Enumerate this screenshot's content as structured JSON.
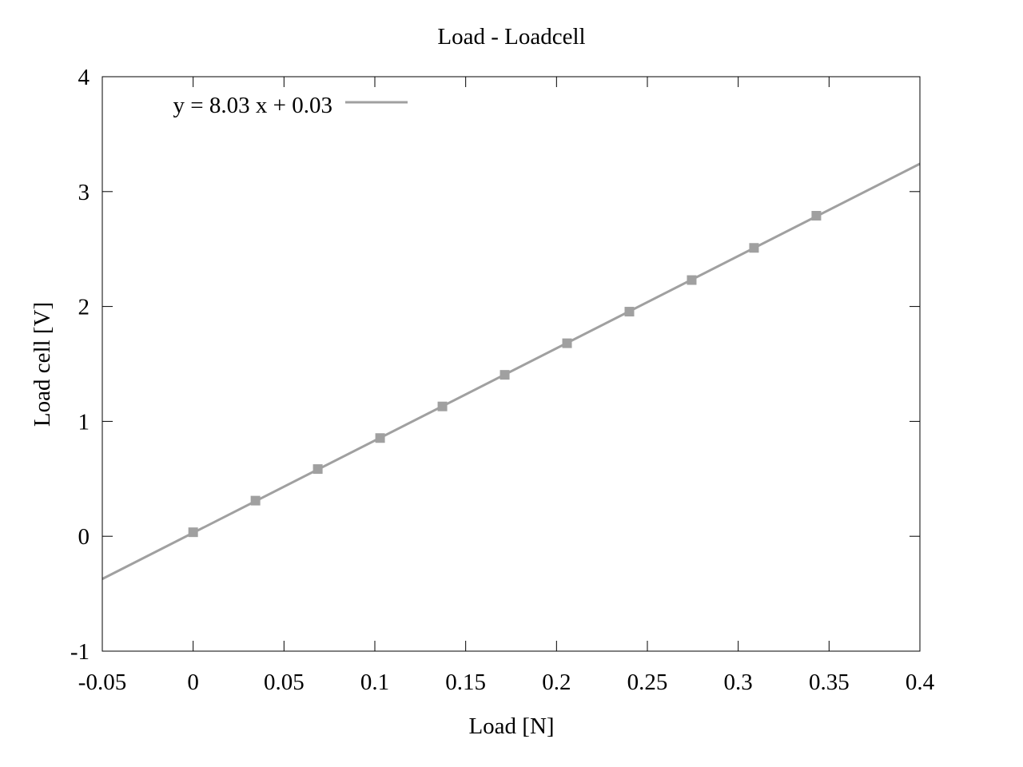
{
  "chart_data": {
    "type": "scatter",
    "title": "Load - Loadcell",
    "xlabel": "Load [N]",
    "ylabel": "Load cell [V]",
    "xlim": [
      -0.05,
      0.4
    ],
    "ylim": [
      -1,
      4
    ],
    "xticks": [
      -0.05,
      0,
      0.05,
      0.1,
      0.15,
      0.2,
      0.25,
      0.3,
      0.35,
      0.4
    ],
    "xtick_labels": [
      "-0.05",
      "0",
      "0.05",
      "0.1",
      "0.15",
      "0.2",
      "0.25",
      "0.3",
      "0.35",
      "0.4"
    ],
    "yticks": [
      -1,
      0,
      1,
      2,
      3,
      4
    ],
    "ytick_labels": [
      "-1",
      "0",
      "1",
      "2",
      "3",
      "4"
    ],
    "grid": false,
    "legend_position": "top-left",
    "colors": {
      "series": "#a0a0a0",
      "frame": "#000000"
    },
    "series": [
      {
        "kind": "points",
        "marker": "square",
        "x": [
          0.0,
          0.0343,
          0.0686,
          0.1029,
          0.1372,
          0.1715,
          0.2058,
          0.2401,
          0.2744,
          0.3087,
          0.343
        ],
        "y": [
          0.035,
          0.31,
          0.585,
          0.855,
          1.13,
          1.405,
          1.68,
          1.955,
          2.23,
          2.51,
          2.79
        ]
      },
      {
        "kind": "fit-line",
        "name": "y = 8.03 x + 0.03",
        "slope": 8.03,
        "intercept": 0.03
      }
    ]
  }
}
